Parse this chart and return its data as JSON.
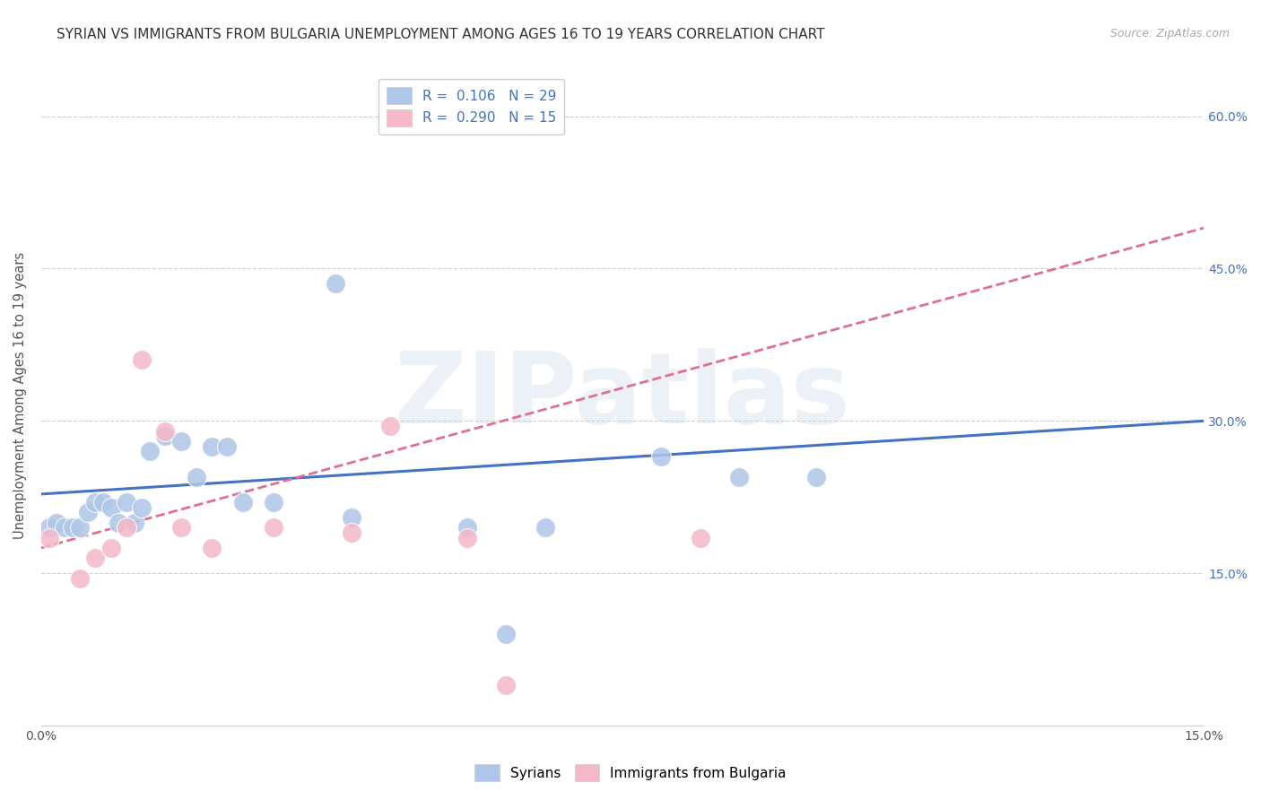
{
  "title": "SYRIAN VS IMMIGRANTS FROM BULGARIA UNEMPLOYMENT AMONG AGES 16 TO 19 YEARS CORRELATION CHART",
  "source": "Source: ZipAtlas.com",
  "ylabel": "Unemployment Among Ages 16 to 19 years",
  "watermark": "ZIPatlas",
  "xlim": [
    0.0,
    0.15
  ],
  "ylim": [
    0.0,
    0.65
  ],
  "xticks": [
    0.0,
    0.03,
    0.06,
    0.09,
    0.12,
    0.15
  ],
  "xtick_labels": [
    "0.0%",
    "",
    "",
    "",
    "",
    "15.0%"
  ],
  "yticks": [
    0.0,
    0.15,
    0.3,
    0.45,
    0.6
  ],
  "ytick_labels_right": [
    "",
    "15.0%",
    "30.0%",
    "45.0%",
    "60.0%"
  ],
  "syrians_x": [
    0.001,
    0.002,
    0.003,
    0.004,
    0.005,
    0.006,
    0.007,
    0.008,
    0.009,
    0.01,
    0.011,
    0.012,
    0.013,
    0.014,
    0.016,
    0.018,
    0.02,
    0.022,
    0.024,
    0.026,
    0.03,
    0.038,
    0.04,
    0.055,
    0.06,
    0.065,
    0.08,
    0.09,
    0.1
  ],
  "syrians_y": [
    0.195,
    0.2,
    0.195,
    0.195,
    0.195,
    0.21,
    0.22,
    0.22,
    0.215,
    0.2,
    0.22,
    0.2,
    0.215,
    0.27,
    0.285,
    0.28,
    0.245,
    0.275,
    0.275,
    0.22,
    0.22,
    0.435,
    0.205,
    0.195,
    0.09,
    0.195,
    0.265,
    0.245,
    0.245
  ],
  "bulgarians_x": [
    0.001,
    0.005,
    0.007,
    0.009,
    0.011,
    0.013,
    0.016,
    0.018,
    0.022,
    0.03,
    0.04,
    0.045,
    0.055,
    0.06,
    0.085
  ],
  "bulgarians_y": [
    0.185,
    0.145,
    0.165,
    0.175,
    0.195,
    0.36,
    0.29,
    0.195,
    0.175,
    0.195,
    0.19,
    0.295,
    0.185,
    0.04,
    0.185
  ],
  "syrian_color": "#aec6e8",
  "bulgarian_color": "#f4b8c8",
  "syrian_line_color": "#4472c4",
  "bulgarian_line_color": "#e07090",
  "background_color": "#ffffff",
  "grid_color": "#d0d0d0",
  "title_fontsize": 11,
  "axis_label_fontsize": 10.5,
  "tick_fontsize": 10,
  "legend_fontsize": 11,
  "syrian_line_intercept": 0.228,
  "syrian_line_slope": 0.48,
  "bulgarian_line_intercept": 0.175,
  "bulgarian_line_slope": 2.1
}
